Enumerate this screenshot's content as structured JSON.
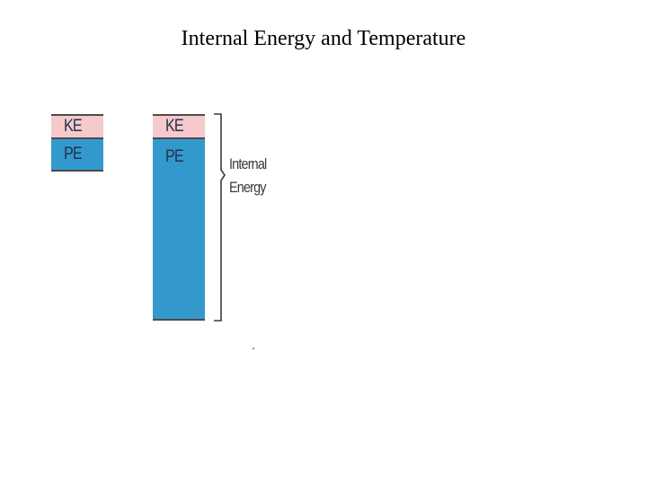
{
  "title": "Internal Energy and Temperature",
  "diagram": {
    "small_bar": {
      "ke_label": "KE",
      "pe_label": "PE"
    },
    "large_bar": {
      "ke_label": "KE",
      "pe_label": "PE"
    },
    "brace_label_line1": "Internal",
    "brace_label_line2": "Energy",
    "colors": {
      "ke": "#f6c9cc",
      "pe": "#3399cc",
      "border": "#4b4b4b"
    }
  }
}
